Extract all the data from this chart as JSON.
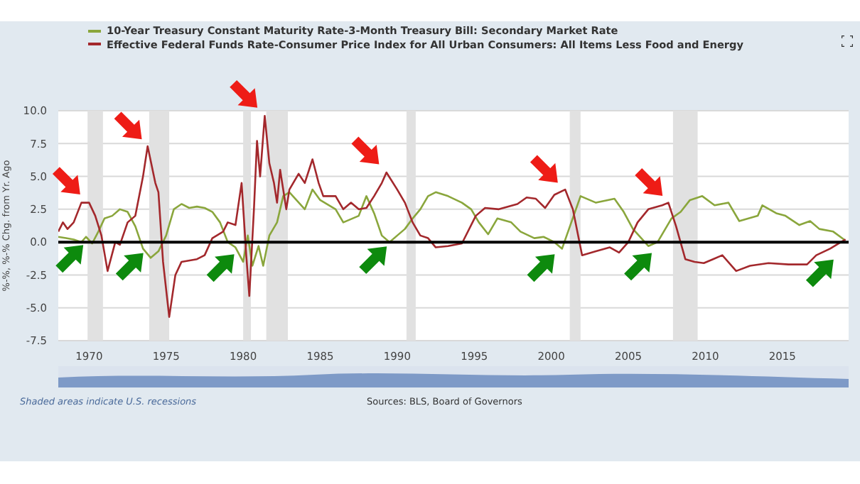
{
  "chart_data": {
    "type": "line",
    "ylabel": "%-%, %-% Chg. from Yr. Ago",
    "annotations": [
      "Shaded areas indicate U.S. recessions",
      "Sources: BLS, Board of Governors"
    ],
    "legend": "top left",
    "grid": "y",
    "xlim": [
      1968,
      2019.3
    ],
    "xticks": [
      1970,
      1975,
      1980,
      1985,
      1990,
      1995,
      2000,
      2005,
      2010,
      2015
    ],
    "ylim": [
      -7.5,
      10
    ],
    "yticks": [
      {
        "value": -7.5,
        "label": "-7.5"
      },
      {
        "value": -5,
        "label": "-5.0"
      },
      {
        "value": -2.5,
        "label": "-2.5"
      },
      {
        "value": 0,
        "label": "0.0"
      },
      {
        "value": 2.5,
        "label": "2.5"
      },
      {
        "value": 5,
        "label": "5.0"
      },
      {
        "value": 7.5,
        "label": "7.5"
      },
      {
        "value": 10,
        "label": "10.0"
      }
    ],
    "ref_lines": [
      {
        "axis": "y",
        "value": 0,
        "color": "#000000"
      }
    ],
    "bands": [
      {
        "axis": "x",
        "from": 1969.9,
        "to": 1970.9,
        "color": "#e1e1e1"
      },
      {
        "axis": "x",
        "from": 1973.9,
        "to": 1975.2,
        "color": "#e1e1e1"
      },
      {
        "axis": "x",
        "from": 1980.0,
        "to": 1980.5,
        "color": "#e1e1e1"
      },
      {
        "axis": "x",
        "from": 1981.5,
        "to": 1982.9,
        "color": "#e1e1e1"
      },
      {
        "axis": "x",
        "from": 1990.6,
        "to": 1991.2,
        "color": "#e1e1e1"
      },
      {
        "axis": "x",
        "from": 2001.2,
        "to": 2001.9,
        "color": "#e1e1e1"
      },
      {
        "axis": "x",
        "from": 2007.9,
        "to": 2009.5,
        "color": "#e1e1e1"
      }
    ],
    "series": [
      {
        "name": "10-Year Treasury Constant Maturity Rate-3-Month Treasury Bill: Secondary Market Rate",
        "color": "#8aa63c",
        "x": [
          1968.0,
          1968.5,
          1969.0,
          1969.5,
          1969.8,
          1970.2,
          1970.6,
          1971.0,
          1971.5,
          1972.0,
          1972.5,
          1973.0,
          1973.5,
          1974.0,
          1974.5,
          1975.0,
          1975.5,
          1976.0,
          1976.5,
          1977.0,
          1977.5,
          1978.0,
          1978.5,
          1979.0,
          1979.5,
          1980.0,
          1980.3,
          1980.6,
          1981.0,
          1981.3,
          1981.7,
          1982.2,
          1982.6,
          1983.0,
          1984.0,
          1984.5,
          1985.0,
          1986.0,
          1986.5,
          1987.5,
          1988.0,
          1988.5,
          1989.0,
          1989.5,
          1990.0,
          1990.5,
          1991.0,
          1991.5,
          1992.0,
          1992.5,
          1993.3,
          1994.2,
          1994.8,
          1995.3,
          1995.9,
          1996.5,
          1997.4,
          1998.0,
          1998.9,
          1999.5,
          2000.2,
          2000.7,
          2001.3,
          2001.9,
          2002.9,
          2004.1,
          2004.7,
          2005.3,
          2006.3,
          2006.9,
          2007.8,
          2008.4,
          2009.0,
          2009.8,
          2010.6,
          2011.5,
          2012.2,
          2013.4,
          2013.7,
          2014.6,
          2015.2,
          2016.1,
          2016.8,
          2017.4,
          2018.3,
          2019.0
        ],
        "values": [
          0.4,
          0.3,
          0.2,
          0.0,
          0.4,
          -0.1,
          0.8,
          1.8,
          2.0,
          2.5,
          2.3,
          1.2,
          -0.5,
          -1.2,
          -0.7,
          0.5,
          2.5,
          2.9,
          2.6,
          2.7,
          2.6,
          2.3,
          1.5,
          0.0,
          -0.4,
          -1.5,
          0.5,
          -1.8,
          -0.3,
          -1.8,
          0.5,
          1.5,
          3.5,
          3.8,
          2.5,
          4.0,
          3.2,
          2.5,
          1.5,
          2.0,
          3.5,
          2.2,
          0.5,
          0.0,
          0.5,
          1.0,
          1.8,
          2.5,
          3.5,
          3.8,
          3.5,
          3.0,
          2.5,
          1.5,
          0.6,
          1.8,
          1.5,
          0.8,
          0.3,
          0.4,
          0.0,
          -0.5,
          1.5,
          3.5,
          3.0,
          3.3,
          2.3,
          1.0,
          -0.3,
          0.0,
          1.8,
          2.3,
          3.2,
          3.5,
          2.8,
          3.0,
          1.6,
          2.0,
          2.8,
          2.2,
          2.0,
          1.3,
          1.6,
          1.0,
          0.8,
          0.2
        ]
      },
      {
        "name": "Effective Federal Funds Rate-Consumer Price Index for All Urban Consumers: All Items Less Food and Energy",
        "color": "#a3282c",
        "x": [
          1968.0,
          1968.3,
          1968.6,
          1969.0,
          1969.5,
          1970.0,
          1970.4,
          1970.8,
          1971.2,
          1971.7,
          1972.0,
          1972.5,
          1973.0,
          1973.5,
          1973.8,
          1974.3,
          1974.5,
          1974.8,
          1975.2,
          1975.6,
          1976.0,
          1977.0,
          1977.5,
          1978.0,
          1978.7,
          1979.0,
          1979.5,
          1979.9,
          1980.2,
          1980.4,
          1980.7,
          1980.9,
          1981.1,
          1981.4,
          1981.7,
          1982.0,
          1982.2,
          1982.4,
          1982.8,
          1983.0,
          1983.6,
          1984.0,
          1984.5,
          1984.9,
          1985.2,
          1986.0,
          1986.5,
          1987.0,
          1987.5,
          1988.0,
          1988.5,
          1989.0,
          1989.3,
          1990.0,
          1990.5,
          1991.0,
          1991.5,
          1992.0,
          1992.5,
          1993.3,
          1994.2,
          1995.1,
          1995.7,
          1996.6,
          1997.8,
          1998.4,
          1999.0,
          1999.6,
          2000.2,
          2000.9,
          2001.4,
          2002.0,
          2002.9,
          2003.8,
          2004.4,
          2005.0,
          2005.6,
          2006.3,
          2007.2,
          2007.6,
          2008.1,
          2008.7,
          2009.3,
          2009.9,
          2010.5,
          2011.1,
          2012.0,
          2012.9,
          2014.1,
          2015.4,
          2016.6,
          2017.2,
          2018.1,
          2018.8,
          2019.1
        ],
        "values": [
          0.8,
          1.5,
          1.0,
          1.5,
          3.0,
          3.0,
          2.0,
          0.5,
          -2.2,
          0.0,
          -0.2,
          1.5,
          2.0,
          5.0,
          7.3,
          4.5,
          3.8,
          -1.5,
          -5.7,
          -2.5,
          -1.5,
          -1.3,
          -1.0,
          0.3,
          0.8,
          1.5,
          1.3,
          4.5,
          -1.0,
          -4.1,
          2.5,
          7.7,
          5.0,
          9.6,
          6.0,
          4.5,
          3.0,
          5.5,
          2.5,
          4.0,
          5.2,
          4.5,
          6.3,
          4.5,
          3.5,
          3.5,
          2.5,
          3.0,
          2.5,
          2.6,
          3.5,
          4.5,
          5.3,
          4.0,
          3.0,
          1.5,
          0.5,
          0.3,
          -0.4,
          -0.3,
          -0.1,
          2.0,
          2.6,
          2.5,
          2.9,
          3.4,
          3.3,
          2.6,
          3.6,
          4.0,
          2.5,
          -1.0,
          -0.7,
          -0.4,
          -0.8,
          0.0,
          1.5,
          2.5,
          2.8,
          3.0,
          1.2,
          -1.3,
          -1.5,
          -1.6,
          -1.3,
          -1.0,
          -2.2,
          -1.8,
          -1.6,
          -1.7,
          -1.7,
          -1.0,
          -0.5,
          0.0,
          0.2
        ]
      }
    ]
  }
}
